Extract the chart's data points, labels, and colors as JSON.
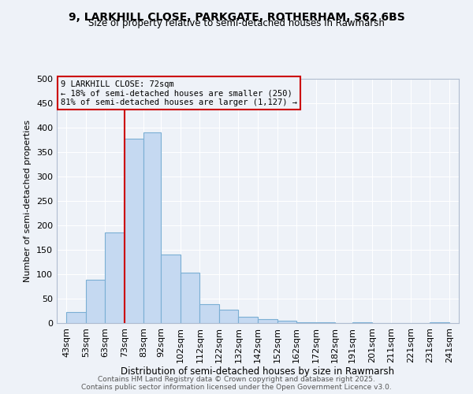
{
  "title1": "9, LARKHILL CLOSE, PARKGATE, ROTHERHAM, S62 6BS",
  "title2": "Size of property relative to semi-detached houses in Rawmarsh",
  "xlabel": "Distribution of semi-detached houses by size in Rawmarsh",
  "ylabel": "Number of semi-detached properties",
  "bar_left_edges": [
    43,
    53,
    63,
    73,
    83,
    92,
    102,
    112,
    122,
    132,
    142,
    152,
    162,
    172,
    182,
    191,
    201,
    211,
    221,
    231
  ],
  "bar_widths": [
    10,
    10,
    10,
    10,
    9,
    10,
    10,
    10,
    10,
    10,
    10,
    10,
    10,
    10,
    9,
    10,
    10,
    10,
    10,
    10
  ],
  "bar_heights": [
    22,
    88,
    185,
    378,
    390,
    140,
    103,
    38,
    27,
    13,
    8,
    5,
    2,
    2,
    0,
    2,
    0,
    0,
    0,
    1
  ],
  "tick_labels": [
    "43sqm",
    "53sqm",
    "63sqm",
    "73sqm",
    "83sqm",
    "92sqm",
    "102sqm",
    "112sqm",
    "122sqm",
    "132sqm",
    "142sqm",
    "152sqm",
    "162sqm",
    "172sqm",
    "182sqm",
    "191sqm",
    "201sqm",
    "211sqm",
    "221sqm",
    "231sqm",
    "241sqm"
  ],
  "tick_positions": [
    43,
    53,
    63,
    73,
    83,
    92,
    102,
    112,
    122,
    132,
    142,
    152,
    162,
    172,
    182,
    191,
    201,
    211,
    221,
    231,
    241
  ],
  "bar_color": "#c5d9f1",
  "bar_edge_color": "#7bafd4",
  "vline_x": 73,
  "vline_color": "#cc0000",
  "ylim": [
    0,
    500
  ],
  "yticks": [
    0,
    50,
    100,
    150,
    200,
    250,
    300,
    350,
    400,
    450,
    500
  ],
  "xlim_left": 38,
  "xlim_right": 246,
  "annotation_title": "9 LARKHILL CLOSE: 72sqm",
  "annotation_line1": "← 18% of semi-detached houses are smaller (250)",
  "annotation_line2": "81% of semi-detached houses are larger (1,127) →",
  "annotation_box_color": "#cc0000",
  "footnote1": "Contains HM Land Registry data © Crown copyright and database right 2025.",
  "footnote2": "Contains public sector information licensed under the Open Government Licence v3.0.",
  "bg_color": "#eef2f8",
  "grid_color": "#ffffff",
  "spine_color": "#b0bcd0"
}
